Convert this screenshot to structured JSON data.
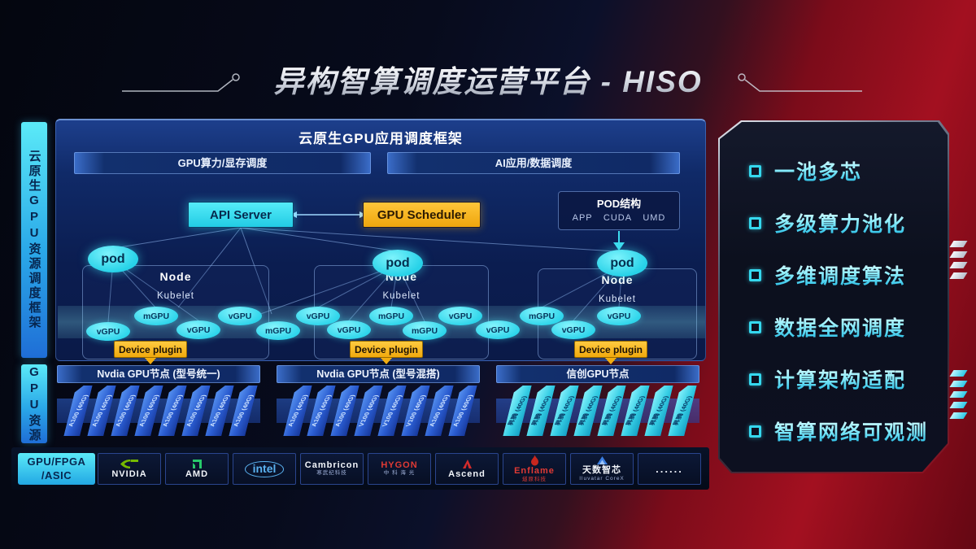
{
  "title": "异构智算调度运营平台 - HISO",
  "rails": {
    "framework_label": "云原生GPU资源调度框架",
    "resource_label": "GPU资源",
    "hardware_line1": "GPU/FPGA",
    "hardware_line2": "/ASIC"
  },
  "framework": {
    "title": "云原生GPU应用调度框架",
    "bars": [
      "GPU算力/显存调度",
      "AI应用/数据调度"
    ],
    "api_server": "API Server",
    "gpu_scheduler": "GPU Scheduler",
    "pod_box": {
      "title": "POD结构",
      "items": [
        "APP",
        "CUDA",
        "UMD"
      ]
    },
    "pod_label": "pod",
    "nodes": [
      {
        "label": "Node",
        "sub": "Kubelet"
      },
      {
        "label": "Node",
        "sub": "Kubelet"
      },
      {
        "label": "Node",
        "sub": "Kubelet"
      }
    ],
    "gpu_units": [
      "vGPU",
      "mGPU",
      "vGPU",
      "vGPU",
      "mGPU",
      "vGPU",
      "vGPU",
      "mGPU",
      "mGPU",
      "vGPU",
      "vGPU",
      "mGPU",
      "vGPU",
      "vGPU"
    ],
    "device_plugin": "Device plugin"
  },
  "gpu_groups": [
    {
      "header": "Nvdia GPU节点 (型号统一)",
      "style": "blue",
      "cards": [
        "A100 (40G)",
        "A100 (40G)",
        "A100 (40G)",
        "A100 (40G)",
        "A100 (40G)",
        "A100 (40G)",
        "A100 (40G)",
        "A100 (40G)"
      ]
    },
    {
      "header": "Nvdia GPU节点 (型号混搭)",
      "style": "blue",
      "cards": [
        "A100 (40G)",
        "A100 (40G)",
        "A100 (40G)",
        "V100 (40G)",
        "V100 (40G)",
        "V100 (40G)",
        "A100 (40G)",
        "A100 (40G)"
      ]
    },
    {
      "header": "信创GPU节点",
      "style": "cyan",
      "cards": [
        "昇腾 (40G)",
        "昇腾 (40G)",
        "昇腾 (40G)",
        "昇腾 (40G)",
        "昇腾 (40G)",
        "昇腾 (40G)",
        "昇腾 (40G)",
        "昇腾 (40G)"
      ]
    }
  ],
  "vendors": [
    {
      "name": "nvidia",
      "label": "NVIDIA",
      "sub": "",
      "icon": "nvidia-icon"
    },
    {
      "name": "amd",
      "label": "AMD",
      "sub": "",
      "icon": "amd-icon"
    },
    {
      "name": "intel",
      "label": "intel",
      "sub": "",
      "icon": "intel-icon"
    },
    {
      "name": "cambricon",
      "label": "Cambricon",
      "sub": "寒武纪科技",
      "icon": ""
    },
    {
      "name": "hygon",
      "label": "HYGON",
      "sub": "中 科 海 光",
      "icon": ""
    },
    {
      "name": "ascend",
      "label": "Ascend",
      "sub": "",
      "icon": "ascend-icon"
    },
    {
      "name": "enflame",
      "label": "Enflame",
      "sub": "燧原科技",
      "icon": "enflame-icon"
    },
    {
      "name": "iluvatar",
      "label": "天数智芯",
      "sub": "Iluvatar CoreX",
      "icon": "iluvatar-icon"
    },
    {
      "name": "more",
      "label": "......",
      "sub": "",
      "icon": ""
    }
  ],
  "features": [
    "一池多芯",
    "多级算力池化",
    "多维调度算法",
    "数据全网调度",
    "计算架构适配",
    "智算网络可观测"
  ],
  "colors": {
    "cyan": "#38e1f2",
    "amber": "#f5b211",
    "panel_blue": "#0d2157",
    "card_blue": "#2f6be0",
    "red_bg": "#9c0f1e"
  }
}
